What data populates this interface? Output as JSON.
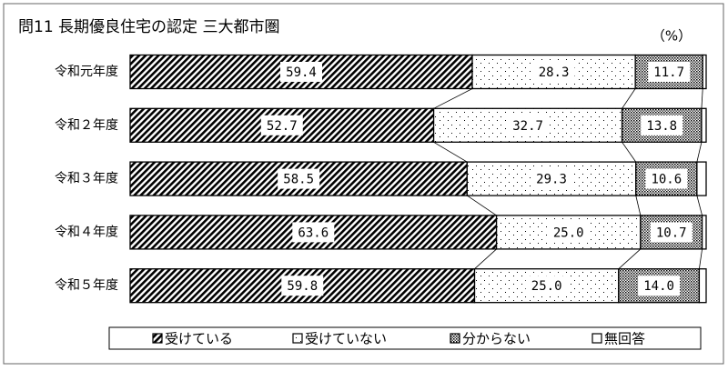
{
  "chart_data": {
    "type": "stacked-bar-horizontal",
    "title": "問11 長期優良住宅の認定 三大都市圏",
    "unit_label": "（%）",
    "categories": [
      "令和元年度",
      "令和２年度",
      "令和３年度",
      "令和４年度",
      "令和５年度"
    ],
    "xlim": [
      0,
      100
    ],
    "legend": "bottom",
    "series": [
      {
        "name": "受けている",
        "pattern": "hatch",
        "color": "#000000",
        "values": [
          59.4,
          52.7,
          58.5,
          63.6,
          59.8
        ],
        "value_labels": [
          "59.4",
          "52.7",
          "58.5",
          "63.6",
          "59.8"
        ]
      },
      {
        "name": "受けていない",
        "pattern": "dots",
        "color": "#000000",
        "values": [
          28.3,
          32.7,
          29.3,
          25.0,
          25.0
        ],
        "value_labels": [
          "28.3",
          "32.7",
          "29.3",
          "25.0",
          "25.0"
        ]
      },
      {
        "name": "分からない",
        "pattern": "cross",
        "color": "#000000",
        "values": [
          11.7,
          13.8,
          10.6,
          10.7,
          14.0
        ],
        "value_labels": [
          "11.7",
          "13.8",
          "10.6",
          "10.7",
          "14.0"
        ]
      },
      {
        "name": "無回答",
        "pattern": "none",
        "color": "#000000",
        "values": [
          0.6,
          0.8,
          1.6,
          0.7,
          1.2
        ]
      }
    ]
  }
}
